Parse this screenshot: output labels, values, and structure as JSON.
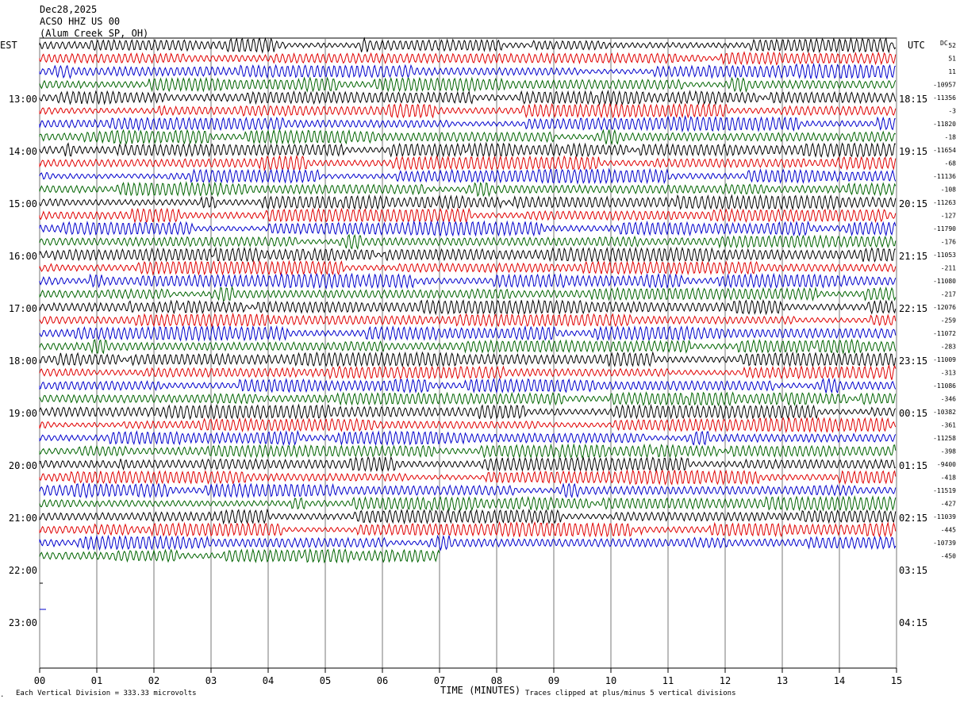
{
  "header": {
    "date": "Dec28,2025",
    "station": "ACSO HHZ US 00",
    "location": "(Alum Creek SP, OH)",
    "left_zone": "EST",
    "right_zone": "UTC",
    "dc_label": "DC"
  },
  "chart_data": {
    "type": "helicorder",
    "xlabel": "TIME (MINUTES)",
    "x_ticks": [
      "00",
      "01",
      "02",
      "03",
      "04",
      "05",
      "06",
      "07",
      "08",
      "09",
      "10",
      "11",
      "12",
      "13",
      "14",
      "15"
    ],
    "xlim": [
      0,
      15
    ],
    "est_hour_labels": [
      "13:00",
      "14:00",
      "15:00",
      "16:00",
      "17:00",
      "18:00",
      "19:00",
      "20:00",
      "21:00",
      "22:00",
      "23:00"
    ],
    "utc_hour_labels": [
      "18:15",
      "19:15",
      "20:15",
      "21:15",
      "22:15",
      "23:15",
      "00:15",
      "01:15",
      "02:15",
      "03:15",
      "04:15"
    ],
    "lines_per_hour": 4,
    "first_hour_index": -1,
    "trace_colors": [
      "#000000",
      "#e00000",
      "#0000cc",
      "#006400"
    ],
    "dc_offsets": [
      "52",
      "51",
      "11",
      "-10957",
      "-11356",
      "-3",
      "-11820",
      "-18",
      "-11654",
      "-68",
      "-11136",
      "-108",
      "-11263",
      "-127",
      "-11790",
      "-176",
      "-11053",
      "-211",
      "-11080",
      "-217",
      "-12076",
      "-259",
      "-11072",
      "-283",
      "-11009",
      "-313",
      "-11086",
      "-346",
      "-10382",
      "-361",
      "-11258",
      "-398",
      "-9400",
      "-418",
      "-11519",
      "-427",
      "-11039",
      "-445",
      "-10739",
      "-450"
    ],
    "full_traces": 39,
    "partial_trace_end_minute": 7.0,
    "clip_divisions": 5
  },
  "footer": {
    "scale_note": "Each Vertical Division =  333.33 microvolts",
    "clip_note": "Traces clipped at plus/minus 5 vertical divisions"
  }
}
